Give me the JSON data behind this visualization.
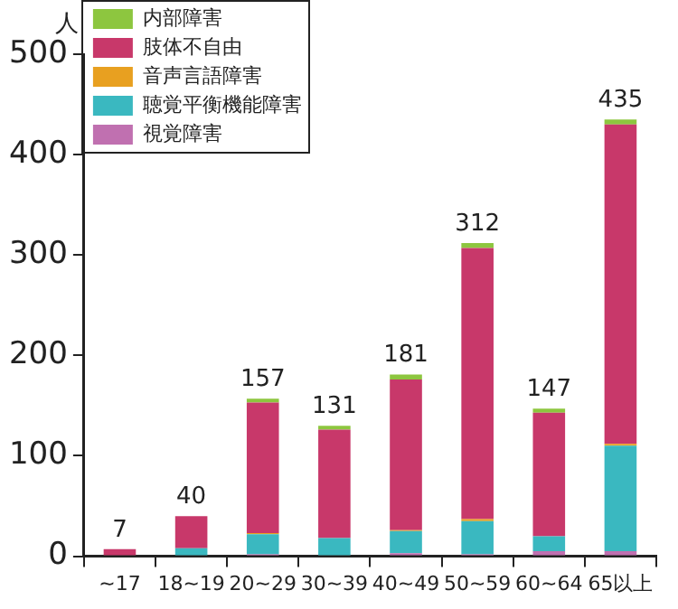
{
  "chart_data": {
    "type": "bar",
    "stacked": true,
    "ylabel": "人",
    "categories": [
      "~17",
      "18~19",
      "20~29",
      "30~39",
      "40~49",
      "50~59",
      "60~64",
      "65以上"
    ],
    "series": [
      {
        "name": "視覚障害",
        "color": "#c070b0",
        "values": [
          0,
          0,
          2,
          null,
          3,
          2,
          5,
          5
        ]
      },
      {
        "name": "聴覚平衡機能障害",
        "color": "#3ab8c0",
        "values": [
          0,
          8,
          20,
          18,
          22,
          33,
          15,
          105
        ]
      },
      {
        "name": "音声言語障害",
        "color": "#e8a020",
        "values": [
          0,
          0,
          1,
          0,
          1,
          2,
          0,
          2
        ]
      },
      {
        "name": "肢体不自由",
        "color": "#c8386a",
        "values": [
          7,
          32,
          130,
          108,
          150,
          270,
          123,
          318
        ]
      },
      {
        "name": "内部障害",
        "color": "#8dc63f",
        "values": [
          0,
          0,
          4,
          4,
          5,
          5,
          4,
          5
        ]
      }
    ],
    "totals": [
      "7",
      "40",
      "157",
      "131",
      "181",
      "312",
      "147",
      "435"
    ],
    "ylim": [
      0,
      500
    ],
    "yticks": [
      0,
      100,
      200,
      300,
      400,
      500
    ],
    "grid": false,
    "legend": "top left"
  }
}
